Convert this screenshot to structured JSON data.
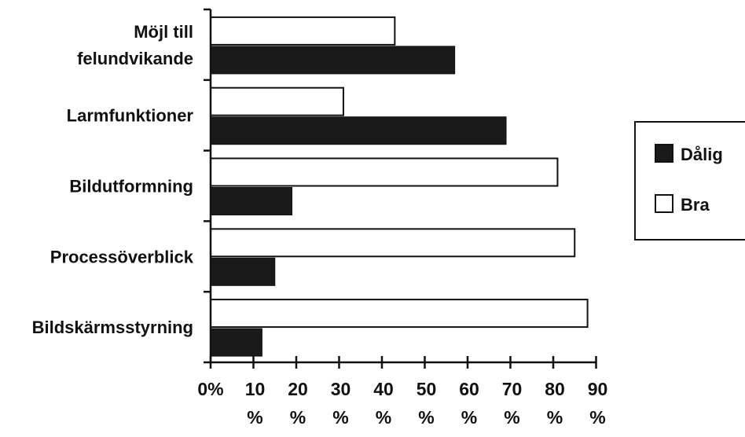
{
  "chart_data": {
    "type": "bar",
    "orientation": "horizontal",
    "categories": [
      [
        "Möjl till",
        "felundvikande"
      ],
      [
        "Larmfunktioner"
      ],
      [
        "Bildutformning"
      ],
      [
        "Processöverblick"
      ],
      [
        "Bildskärmsstyrning"
      ]
    ],
    "series": [
      {
        "name": "Bra",
        "values": [
          43,
          31,
          81,
          85,
          88
        ],
        "color": "#ffffff"
      },
      {
        "name": "Dålig",
        "values": [
          57,
          69,
          19,
          15,
          12
        ],
        "color": "#1a1a1a"
      }
    ],
    "xlim": [
      0,
      90
    ],
    "xticks": [
      0,
      10,
      20,
      30,
      40,
      50,
      60,
      70,
      80,
      90
    ],
    "xtick_labels": [
      [
        "0%"
      ],
      [
        "10",
        "%"
      ],
      [
        "20",
        "%"
      ],
      [
        "30",
        "%"
      ],
      [
        "40",
        "%"
      ],
      [
        "50",
        "%"
      ],
      [
        "60",
        "%"
      ],
      [
        "70",
        "%"
      ],
      [
        "80",
        "%"
      ],
      [
        "90",
        "%"
      ]
    ],
    "title": "",
    "xlabel": "",
    "ylabel": "",
    "grid": false,
    "legend": {
      "position": "right",
      "entries": [
        {
          "label": "Dålig",
          "color": "#1a1a1a"
        },
        {
          "label": "Bra",
          "color": "#ffffff"
        }
      ]
    }
  }
}
